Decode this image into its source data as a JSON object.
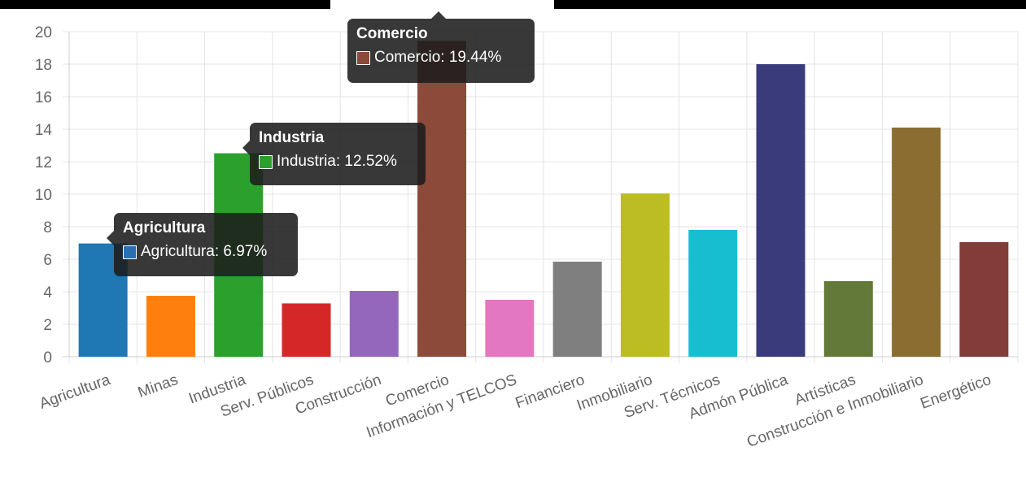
{
  "chart_data": {
    "type": "bar",
    "categories": [
      "Agricultura",
      "Minas",
      "Industria",
      "Serv. Públicos",
      "Construcción",
      "Comercio",
      "Información y TELCOS",
      "Financiero",
      "Inmobiliario",
      "Serv. Técnicos",
      "Admón Pública",
      "Artísticas",
      "Construcción e Inmobiliario",
      "Energético"
    ],
    "values": [
      6.97,
      3.75,
      12.52,
      3.28,
      4.05,
      19.44,
      3.5,
      5.85,
      10.05,
      7.8,
      18.0,
      4.65,
      14.1,
      7.05
    ],
    "colors": [
      "#1f77b4",
      "#ff7f0e",
      "#2ca02c",
      "#d62728",
      "#9467bd",
      "#8c4a3a",
      "#e377c2",
      "#7f7f7f",
      "#bcbd22",
      "#17becf",
      "#393b7b",
      "#637939",
      "#8c6d31",
      "#843c39"
    ],
    "yticks": [
      "0",
      "2",
      "4",
      "6",
      "8",
      "10",
      "12",
      "14",
      "16",
      "18",
      "20"
    ],
    "ylim": [
      0,
      20
    ],
    "grid": true
  },
  "tooltips": [
    {
      "title": "Agricultura",
      "label": "Agricultura: 6.97%",
      "color": "#2a6fb4"
    },
    {
      "title": "Industria",
      "label": "Industria: 12.52%",
      "color": "#2ca02c"
    },
    {
      "title": "Comercio",
      "label": "Comercio: 19.44%",
      "color": "#8c4a3a"
    }
  ]
}
